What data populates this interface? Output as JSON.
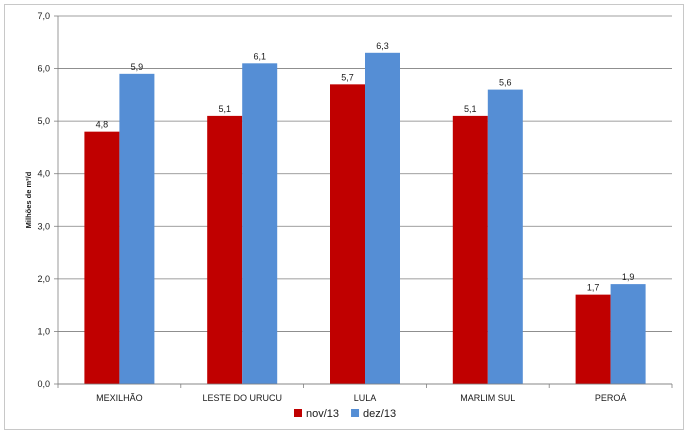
{
  "chart_data": {
    "type": "bar",
    "title": "",
    "xlabel": "",
    "ylabel": "Milhões de m³/d",
    "ylim": [
      0,
      7
    ],
    "yticks": [
      "0,0",
      "1,0",
      "2,0",
      "3,0",
      "4,0",
      "5,0",
      "6,0",
      "7,0"
    ],
    "grid": true,
    "legend_position": "bottom",
    "categories": [
      "MEXILHÃO",
      "LESTE DO URUCU",
      "LULA",
      "MARLIM SUL",
      "PEROÁ"
    ],
    "series": [
      {
        "name": "nov/13",
        "color": "#C00000",
        "values": [
          4.8,
          5.1,
          5.7,
          5.1,
          1.7
        ],
        "labels": [
          "4,8",
          "5,1",
          "5,7",
          "5,1",
          "1,7"
        ]
      },
      {
        "name": "dez/13",
        "color": "#558ED5",
        "values": [
          5.9,
          6.1,
          6.3,
          5.6,
          1.9
        ],
        "labels": [
          "5,9",
          "6,1",
          "6,3",
          "5,6",
          "1,9"
        ]
      }
    ]
  }
}
